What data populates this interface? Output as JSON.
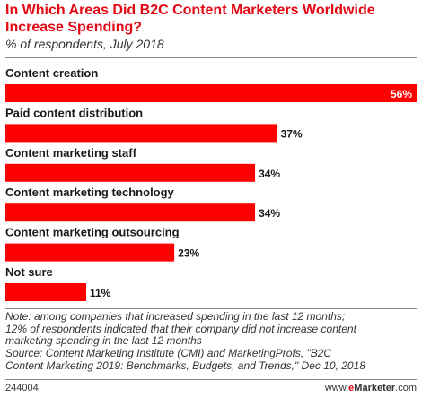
{
  "header": {
    "title": "In Which Areas Did B2C Content Marketers Worldwide Increase Spending?",
    "subtitle": "% of respondents, July 2018"
  },
  "chart_data": {
    "type": "bar",
    "orientation": "horizontal",
    "categories": [
      "Content creation",
      "Paid content distribution",
      "Content marketing staff",
      "Content marketing technology",
      "Content marketing outsourcing",
      "Not sure"
    ],
    "values": [
      56,
      37,
      34,
      34,
      23,
      11
    ],
    "value_labels": [
      "56%",
      "37%",
      "34%",
      "34%",
      "23%",
      "11%"
    ],
    "xlim": [
      0,
      56
    ],
    "grid": false,
    "legend": "none",
    "bar_color": "#ff0000"
  },
  "footer": {
    "note_lines": [
      "Note: among companies that increased spending in the last 12 months;",
      "12% of respondents indicated that their company did not increase content",
      "marketing spending in the last 12 months",
      "Source: Content Marketing Institute (CMI) and MarketingProfs, \"B2C",
      "Content Marketing 2019: Benchmarks, Budgets, and Trends,\" Dec 10, 2018"
    ],
    "chart_id": "244004",
    "credit_prefix": "www.",
    "credit_brand_e": "e",
    "credit_brand_rest": "Marketer",
    "credit_suffix": ".com"
  },
  "colors": {
    "accent": "#e30613",
    "bar": "#ff0000"
  }
}
